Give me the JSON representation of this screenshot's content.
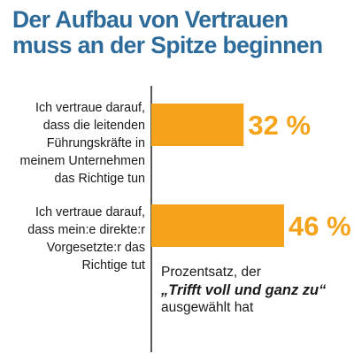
{
  "chart_data": {
    "type": "bar",
    "orientation": "horizontal",
    "title": [
      "Der Aufbau von Vertrauen",
      "muss an der Spitze beginnen"
    ],
    "categories": [
      [
        "Ich vertraue darauf,",
        "dass die leitenden",
        "Führungskräfte in",
        "meinem Unternehmen",
        "das Richtige tun"
      ],
      [
        "Ich vertraue darauf,",
        "dass mein:e direkte:r",
        "Vorgesetzte:r das",
        "Richtige tut"
      ]
    ],
    "values": [
      32,
      46
    ],
    "value_labels": [
      "32 %",
      "46 %"
    ],
    "xlim": [
      0,
      100
    ],
    "bar_color": "#f4a31b",
    "note": {
      "line1": "Prozentsatz, der",
      "line2": "„Trifft voll und ganz zu“",
      "line3": "ausgewählt hat"
    }
  },
  "colors": {
    "title": "#2d6c9a",
    "bar": "#f4a31b",
    "value_label": "#f4a31b",
    "axis": "#222222"
  }
}
